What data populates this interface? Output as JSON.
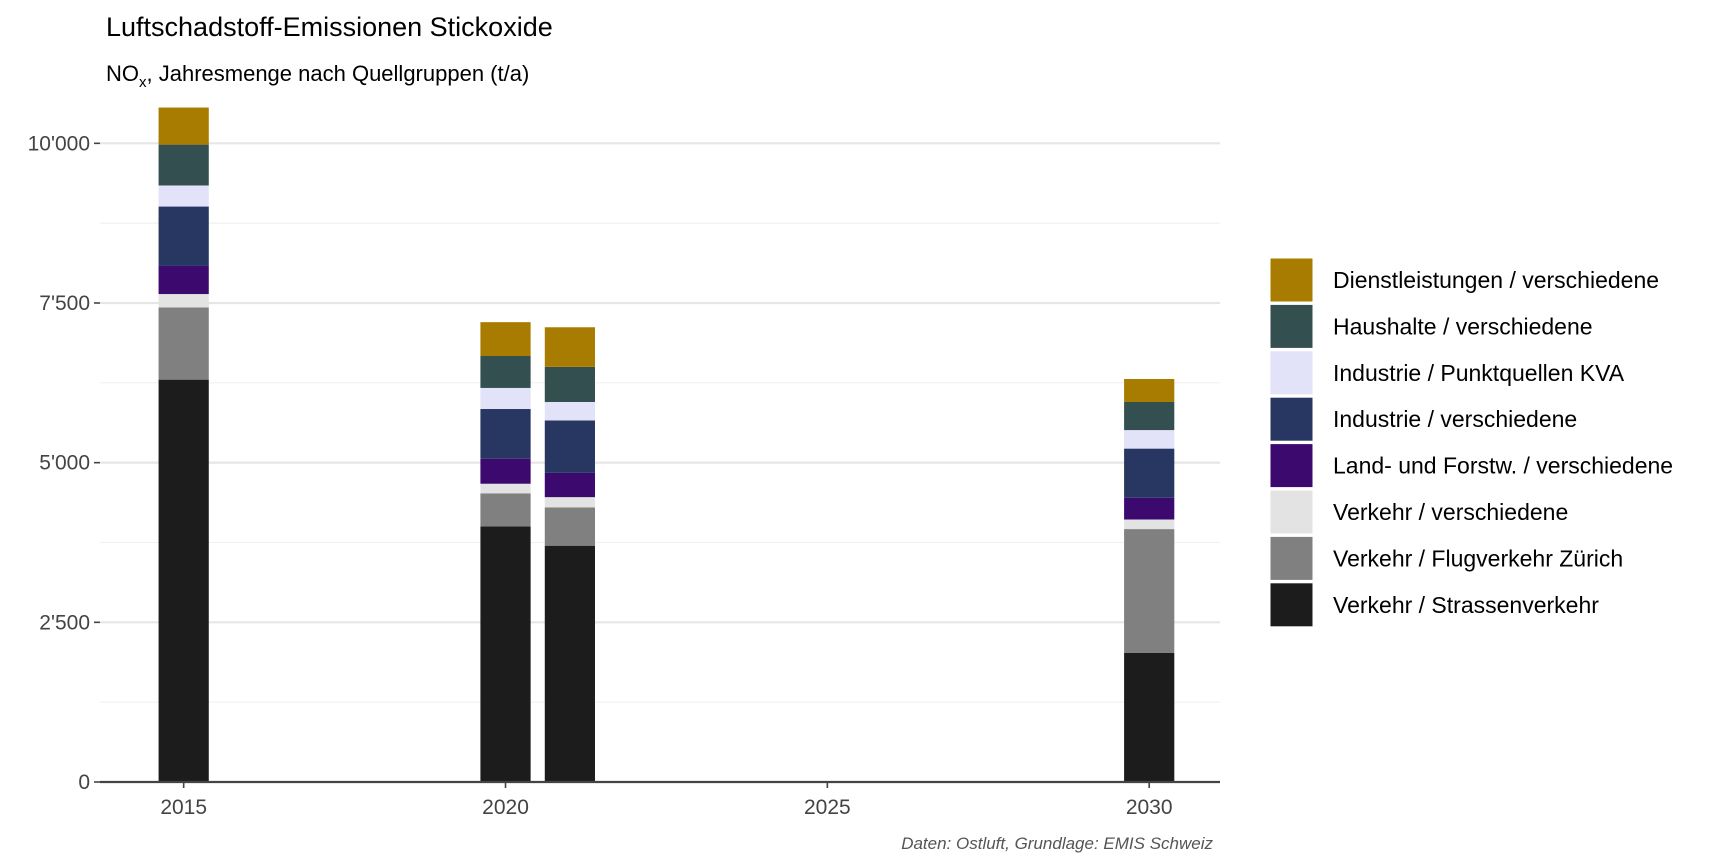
{
  "chart_data": {
    "type": "bar",
    "stacked": true,
    "title": "Luftschadstoff-Emissionen Stickoxide",
    "subtitle": {
      "prefix": "NO",
      "subscript": "x",
      "suffix": ", Jahresmenge nach Quellgruppen (t/a)"
    },
    "caption": "Daten: Ostluft, Grundlage: EMIS Schweiz",
    "xlabel": "",
    "ylabel": "",
    "x_ticks": [
      2015,
      2020,
      2025,
      2030
    ],
    "x_tick_labels": [
      "2015",
      "2020",
      "2025",
      "2030"
    ],
    "xlim": [
      2013.7,
      2031.1
    ],
    "y_ticks": [
      0,
      2500,
      5000,
      7500,
      10000
    ],
    "y_tick_labels": [
      "0",
      "2'500",
      "5'000",
      "7'500",
      "10'000"
    ],
    "ylim": [
      0,
      10600
    ],
    "grid": true,
    "legend_position": "right",
    "x": [
      2015,
      2020,
      2021,
      2030
    ],
    "series": [
      {
        "name": "Verkehr / Strassenverkehr",
        "color": "#1c1c1c",
        "values": [
          6300,
          4000,
          3700,
          2020
        ]
      },
      {
        "name": "Verkehr / Flugverkehr Zürich",
        "color": "#808080",
        "values": [
          1130,
          520,
          600,
          1940
        ]
      },
      {
        "name": "Verkehr / verschiedene",
        "color": "#e3e3e3",
        "values": [
          210,
          150,
          160,
          150
        ]
      },
      {
        "name": "Land- und Forstw. / verschiedene",
        "color": "#3c0a6e",
        "values": [
          440,
          390,
          380,
          340
        ]
      },
      {
        "name": "Industrie / verschiedene",
        "color": "#283761",
        "values": [
          930,
          780,
          820,
          770
        ]
      },
      {
        "name": "Industrie / Punktquellen KVA",
        "color": "#e2e2f8",
        "values": [
          330,
          330,
          290,
          290
        ]
      },
      {
        "name": "Haushalte / verschiedene",
        "color": "#344f50",
        "values": [
          640,
          500,
          550,
          440
        ]
      },
      {
        "name": "Dienstleistungen / verschiedene",
        "color": "#a87c00",
        "values": [
          580,
          530,
          620,
          360
        ]
      }
    ]
  }
}
